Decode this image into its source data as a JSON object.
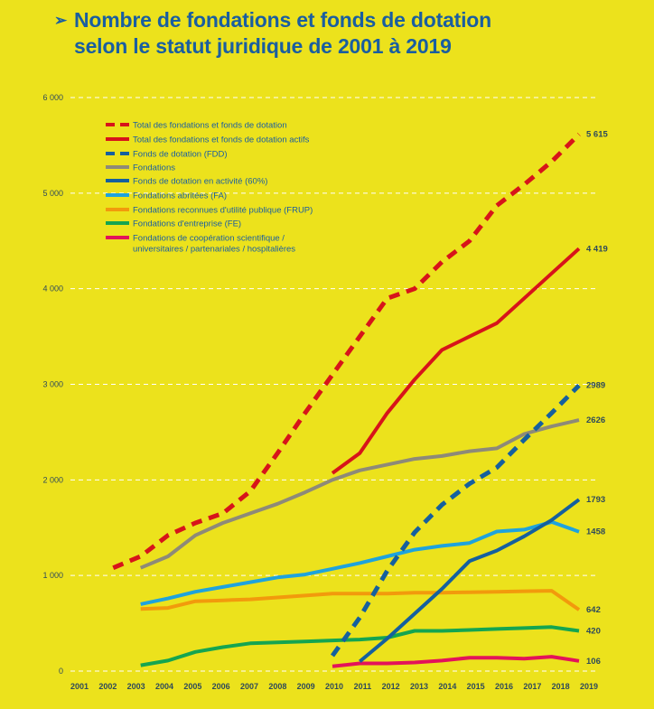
{
  "title": {
    "arrow_icon": "➢",
    "line1": "Nombre de fondations et fonds de dotation",
    "line2": "selon le statut juridique de 2001 à 2019"
  },
  "chart_data": {
    "type": "line",
    "title": "Nombre de fondations et fonds de dotation selon le statut juridique de 2001 à 2019",
    "xlabel": "",
    "ylabel": "",
    "x": [
      2001,
      2002,
      2003,
      2004,
      2005,
      2006,
      2007,
      2008,
      2009,
      2010,
      2011,
      2012,
      2013,
      2014,
      2015,
      2016,
      2017,
      2018,
      2019
    ],
    "x_tick_labels": [
      "2001",
      "2002",
      "2003",
      "2004",
      "2005",
      "2006",
      "2007",
      "2008",
      "2009",
      "2010",
      "2011",
      "2012",
      "2013",
      "2014",
      "2015",
      "2016",
      "2017",
      "2018",
      "2019"
    ],
    "ylim": [
      0,
      6000
    ],
    "y_ticks": [
      0,
      1000,
      2000,
      3000,
      4000,
      5000,
      6000
    ],
    "y_tick_labels": [
      "0",
      "1 000",
      "2 000",
      "3 000",
      "4 000",
      "5 000",
      "6 000"
    ],
    "grid": "horizontal dashed",
    "legend_position": "top-left",
    "series": [
      {
        "name": "Total des fondations et fonds de dotation",
        "color": "#d7141a",
        "dashed": true,
        "values": [
          1080,
          1200,
          1420,
          1550,
          1650,
          1880,
          2280,
          2700,
          3100,
          3500,
          3900,
          4000,
          4280,
          4500,
          4870,
          5090,
          5330,
          5615,
          null
        ],
        "end_label": "5 615"
      },
      {
        "name": "Total des fondations et fonds de dotation actifs",
        "color": "#d7141a",
        "dashed": false,
        "values": [
          null,
          null,
          null,
          null,
          null,
          null,
          null,
          null,
          null,
          2070,
          2280,
          2700,
          3050,
          3360,
          3500,
          3640,
          3900,
          4160,
          4419
        ],
        "end_label": "4 419"
      },
      {
        "name": "Fonds de dotation (FDD)",
        "color": "#15609e",
        "dashed": true,
        "values": [
          null,
          null,
          null,
          null,
          null,
          null,
          null,
          null,
          160,
          560,
          1050,
          1450,
          1740,
          1960,
          2130,
          2420,
          2700,
          2989,
          null
        ],
        "end_label": "2989"
      },
      {
        "name": "Fondations",
        "color": "#8e8a78",
        "dashed": false,
        "values": [
          1080,
          1200,
          1420,
          1550,
          1650,
          1750,
          1870,
          2000,
          2100,
          2160,
          2220,
          2250,
          2300,
          2330,
          2480,
          2560,
          2626,
          null,
          null
        ],
        "end_label": "2626"
      },
      {
        "name": "Fonds de dotation en activité (60%)",
        "color": "#15609e",
        "dashed": false,
        "values": [
          null,
          null,
          null,
          null,
          null,
          null,
          null,
          null,
          100,
          340,
          600,
          860,
          1150,
          1260,
          1410,
          1580,
          1793,
          null,
          null
        ],
        "end_label": "1793"
      },
      {
        "name": "Fondations abritées (FA)",
        "color": "#1fa3dc",
        "dashed": false,
        "values": [
          700,
          760,
          830,
          880,
          930,
          980,
          1010,
          1070,
          1130,
          1200,
          1270,
          1310,
          1340,
          1460,
          1480,
          1560,
          1458,
          null,
          null
        ],
        "end_label": "1458"
      },
      {
        "name": "Fondations reconnues d'utilité publique (FRUP)",
        "color": "#f29a0c",
        "dashed": false,
        "values": [
          650,
          660,
          730,
          740,
          750,
          770,
          790,
          810,
          810,
          810,
          820,
          820,
          825,
          830,
          835,
          840,
          642,
          null,
          null
        ],
        "end_label": "642"
      },
      {
        "name": "Fondations d'entreprise (FE)",
        "color": "#15a550",
        "dashed": false,
        "values": [
          60,
          110,
          200,
          250,
          290,
          300,
          310,
          320,
          330,
          350,
          420,
          420,
          430,
          440,
          450,
          460,
          420,
          null,
          null
        ],
        "end_label": "420"
      },
      {
        "name": "Fondations de coopération scientifique / universitaires / partenariales / hospitalières",
        "color": "#e3135a",
        "dashed": false,
        "values": [
          null,
          null,
          null,
          null,
          null,
          null,
          50,
          80,
          80,
          90,
          110,
          140,
          140,
          130,
          150,
          106,
          null,
          null,
          null
        ],
        "end_label": "106"
      }
    ],
    "legend": [
      "Total des fondations et fonds de dotation",
      "Total des fondations et fonds de dotation actifs",
      "Fonds de dotation (FDD)",
      "Fondations",
      "Fonds de dotation en activité (60%)",
      "Fondations abritées (FA)",
      "Fondations reconnues d'utilité publique (FRUP)",
      "Fondations d'entreprise (FE)",
      "Fondations de coopération scientifique /",
      "universitaires / partenariales / hospitalières"
    ]
  }
}
